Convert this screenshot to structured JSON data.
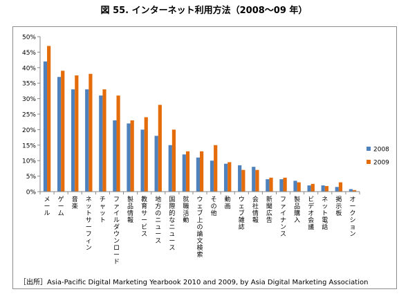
{
  "title": "図 55. インターネット利用方法（2008〜09 年）",
  "source": "［出所］Asia-Pacific Digital Marketing Yearbook 2010 and 2009, by Asia Digital Marketing Association",
  "chart_data": {
    "type": "bar",
    "title": "図 55. インターネット利用方法（2008〜09 年）",
    "xlabel": "",
    "ylabel": "",
    "ylim": [
      0,
      50
    ],
    "yticks": [
      "0%",
      "5%",
      "10%",
      "15%",
      "20%",
      "25%",
      "30%",
      "35%",
      "40%",
      "45%",
      "50%"
    ],
    "grid": false,
    "legend_position": "right",
    "categories": [
      "メール",
      "ゲーム",
      "音楽",
      "ネットサーフィン",
      "チャット",
      "ファイルダウンロード",
      "製品情報",
      "教育サービス",
      "地方のニュース",
      "国際的なニュース",
      "就職活動",
      "ウェブ上の論文検索",
      "その他",
      "動画",
      "ウェブ雑誌",
      "会社情報",
      "新聞広告",
      "ファイナンス",
      "製品購入",
      "ビデオ会議",
      "ネット電話",
      "掲示板",
      "オークション"
    ],
    "series": [
      {
        "name": "2008",
        "color": "#4f81bd",
        "values": [
          42,
          37,
          33,
          33,
          31,
          23,
          22,
          20,
          18,
          15,
          12,
          11,
          10,
          9,
          8.5,
          8,
          4,
          4,
          3.5,
          2,
          2,
          1.5,
          0.8
        ]
      },
      {
        "name": "2009",
        "color": "#e46c0a",
        "values": [
          47,
          39,
          37.5,
          38,
          33,
          31,
          23,
          24,
          28,
          20,
          13,
          13,
          15,
          9.5,
          7,
          7,
          4.5,
          4.5,
          3,
          2.5,
          1.8,
          3,
          0.5
        ]
      }
    ]
  }
}
